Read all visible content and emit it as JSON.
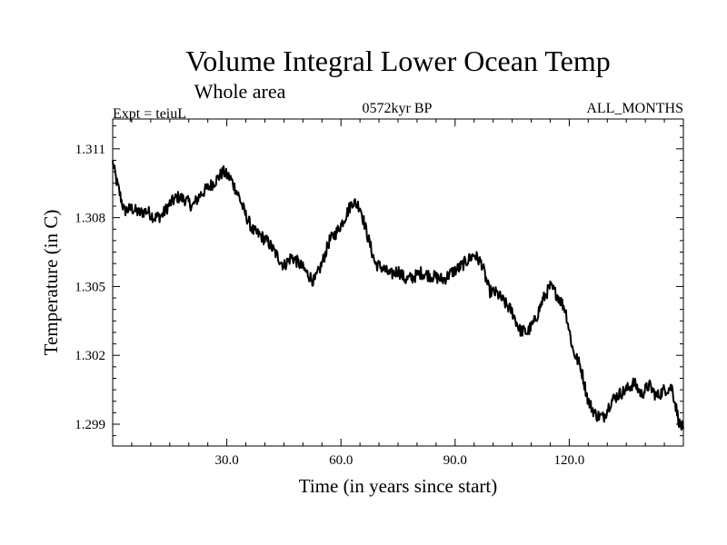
{
  "chart_data": {
    "type": "line",
    "title": "Volume Integral Lower Ocean Temp",
    "subtitle": "Whole area",
    "annotations": {
      "left": "Expt = teiuL",
      "center": "0572kyr BP",
      "right": "ALL_MONTHS"
    },
    "xlabel": "Time (in years since start)",
    "ylabel": "Temperature (in C)",
    "xlim": [
      0,
      150
    ],
    "ylim": [
      1.29805,
      1.3123
    ],
    "x_ticks": [
      30,
      60,
      90,
      120
    ],
    "x_tick_labels": [
      "30.0",
      "60.0",
      "90.0",
      "120.0"
    ],
    "y_ticks": [
      1.299,
      1.302,
      1.305,
      1.308,
      1.311
    ],
    "y_tick_labels": [
      "1.299",
      "1.302",
      "1.305",
      "1.308",
      "1.311"
    ],
    "grid": false,
    "series": [
      {
        "name": "Volume Integral Lower Ocean Temp",
        "x": [
          0,
          1,
          3,
          5,
          7,
          9,
          11,
          13,
          15,
          17,
          19,
          21,
          23,
          25,
          27,
          29,
          31,
          33,
          35,
          37,
          39,
          41,
          43,
          45,
          47,
          49,
          51,
          53,
          55,
          57,
          59,
          61,
          63,
          65,
          67,
          69,
          71,
          73,
          75,
          77,
          79,
          81,
          83,
          85,
          87,
          89,
          91,
          93,
          95,
          97,
          99,
          101,
          103,
          105,
          107,
          109,
          111,
          113,
          115,
          117,
          119,
          121,
          123,
          125,
          127,
          129,
          131,
          133,
          135,
          137,
          139,
          141,
          143,
          145,
          147,
          149,
          150
        ],
        "values": [
          1.3104,
          1.3096,
          1.3083,
          1.3084,
          1.3082,
          1.3083,
          1.308,
          1.3081,
          1.3086,
          1.3089,
          1.3088,
          1.3085,
          1.309,
          1.3093,
          1.3096,
          1.31,
          1.3097,
          1.309,
          1.3081,
          1.3074,
          1.3072,
          1.3069,
          1.3064,
          1.3059,
          1.3063,
          1.306,
          1.3056,
          1.3052,
          1.306,
          1.307,
          1.3074,
          1.308,
          1.3087,
          1.3085,
          1.3072,
          1.306,
          1.3058,
          1.3055,
          1.3057,
          1.3053,
          1.3054,
          1.3056,
          1.3055,
          1.3054,
          1.3053,
          1.3056,
          1.3058,
          1.3061,
          1.3064,
          1.306,
          1.3048,
          1.3047,
          1.3043,
          1.3039,
          1.3031,
          1.303,
          1.3035,
          1.3044,
          1.305,
          1.3046,
          1.304,
          1.3022,
          1.3015,
          1.3,
          1.2994,
          1.2993,
          1.3,
          1.3003,
          1.3005,
          1.3008,
          1.3003,
          1.3007,
          1.3002,
          1.3005,
          1.3006,
          1.299,
          1.2988
        ]
      }
    ]
  }
}
